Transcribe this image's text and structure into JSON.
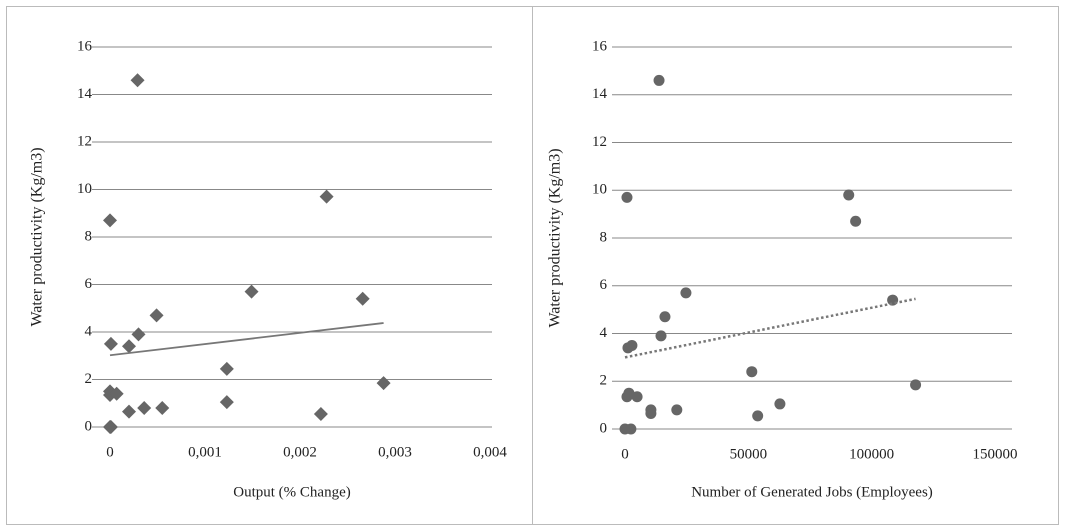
{
  "chart_data": [
    {
      "type": "scatter",
      "y_label": "Water productivity (Kg/m3)",
      "x_label": "Output (% Change)",
      "marker": "diamond",
      "color": "#666666",
      "grid": true,
      "xlim": [
        0,
        0.004
      ],
      "ylim": [
        0,
        16
      ],
      "xticks": [
        0,
        {
          "value": 0.001,
          "label": "0,001"
        },
        {
          "value": 0.002,
          "label": "0,002"
        },
        {
          "value": 0.003,
          "label": "0,003"
        },
        {
          "value": 0.004,
          "label": "0,004"
        }
      ],
      "yticks": [
        0,
        2,
        4,
        6,
        8,
        10,
        12,
        14,
        16
      ],
      "x": [
        0,
        0.00029,
        1e-05,
        0.0003,
        0.0002,
        0.00049,
        0,
        0,
        7e-05,
        0.0002,
        0.00036,
        0.00055,
        0,
        1e-05,
        0.00123,
        0.00123,
        0.00149,
        0.00228,
        0.00222,
        0.00266,
        0.00288
      ],
      "values": [
        8.7,
        14.6,
        3.5,
        3.9,
        3.4,
        4.7,
        1.5,
        1.35,
        1.4,
        0.65,
        0.8,
        0.8,
        0,
        0,
        2.45,
        1.05,
        5.7,
        9.7,
        0.55,
        5.4,
        1.85
      ],
      "trendline": {
        "style": "solid",
        "x": [
          0,
          0.00288
        ],
        "values": [
          3.02,
          4.38
        ]
      }
    },
    {
      "type": "scatter",
      "y_label": "Water productivity (Kg/m3)",
      "x_label": "Number of Generated Jobs (Employees)",
      "marker": "circle",
      "color": "#666666",
      "grid": true,
      "xlim": [
        0,
        150000
      ],
      "ylim": [
        0,
        16
      ],
      "xticks": [
        0,
        50000,
        100000,
        150000
      ],
      "yticks": [
        0,
        2,
        4,
        6,
        8,
        10,
        12,
        14,
        16
      ],
      "x": [
        13800,
        800,
        90700,
        93500,
        108500,
        24700,
        16200,
        14600,
        1200,
        2800,
        51400,
        117800,
        800,
        1600,
        4900,
        10500,
        10500,
        21000,
        62800,
        53800,
        0,
        2400
      ],
      "values": [
        14.6,
        9.7,
        9.8,
        8.7,
        5.4,
        5.7,
        4.7,
        3.9,
        3.4,
        3.5,
        2.4,
        1.85,
        1.35,
        1.5,
        1.35,
        0.8,
        0.65,
        0.8,
        1.05,
        0.55,
        0,
        0
      ],
      "trendline": {
        "style": "dotted",
        "x": [
          0,
          117800
        ],
        "values": [
          3.0,
          5.45
        ]
      }
    }
  ]
}
